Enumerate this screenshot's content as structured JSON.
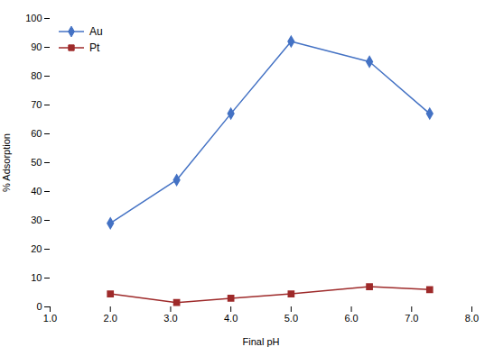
{
  "chart_data": {
    "type": "line",
    "xlabel": "Final pH",
    "ylabel": "% Adsorption",
    "x": [
      2.0,
      3.1,
      4.0,
      5.0,
      6.3,
      7.3
    ],
    "series": [
      {
        "name": "Au",
        "color": "#4472C4",
        "marker": "diamond",
        "values": [
          29,
          44,
          67,
          92,
          85,
          67
        ]
      },
      {
        "name": "Pt",
        "color": "#9E2A2A",
        "marker": "square",
        "values": [
          4.5,
          1.5,
          3.0,
          4.5,
          7.0,
          6.0
        ]
      }
    ],
    "xlim": [
      1,
      8
    ],
    "xticks": [
      1,
      2,
      3,
      4,
      5,
      6,
      7,
      8
    ],
    "ylim": [
      0,
      100
    ],
    "yticks": [
      0,
      10,
      20,
      30,
      40,
      50,
      60,
      70,
      80,
      90,
      100
    ],
    "grid": false,
    "legend": "upper left"
  }
}
